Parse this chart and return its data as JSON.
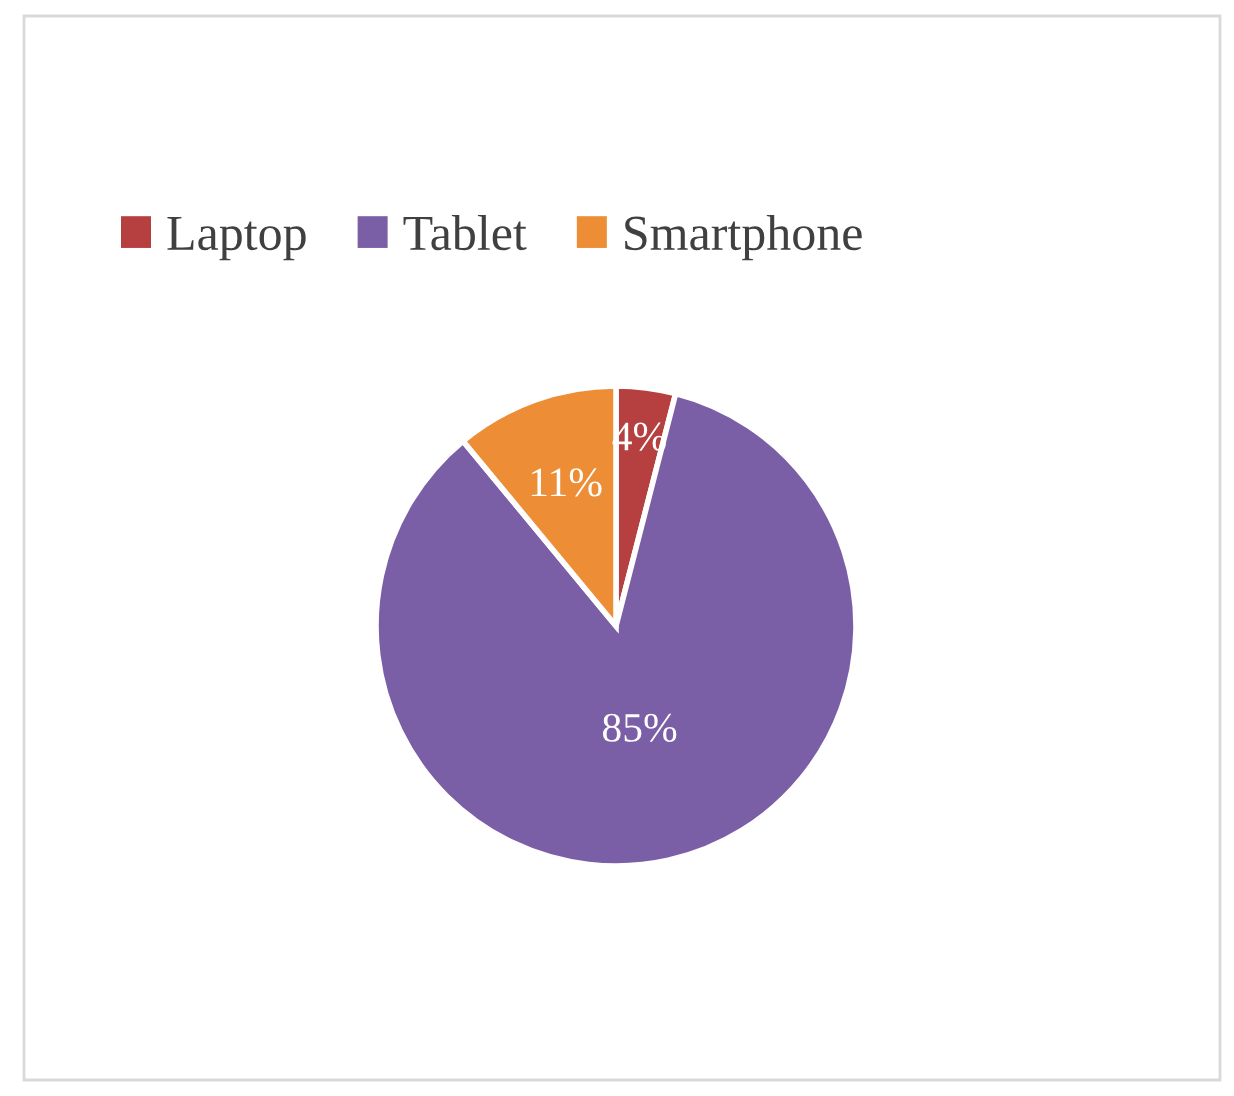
{
  "chart_data": {
    "type": "pie",
    "categories": [
      "Laptop",
      "Tablet",
      "Smartphone"
    ],
    "values": [
      4,
      85,
      11
    ],
    "colors": [
      "#b5403f",
      "#7b5fa6",
      "#ed8d35"
    ],
    "value_labels": [
      "4%",
      "85%",
      "11%"
    ],
    "legend": "top left"
  }
}
